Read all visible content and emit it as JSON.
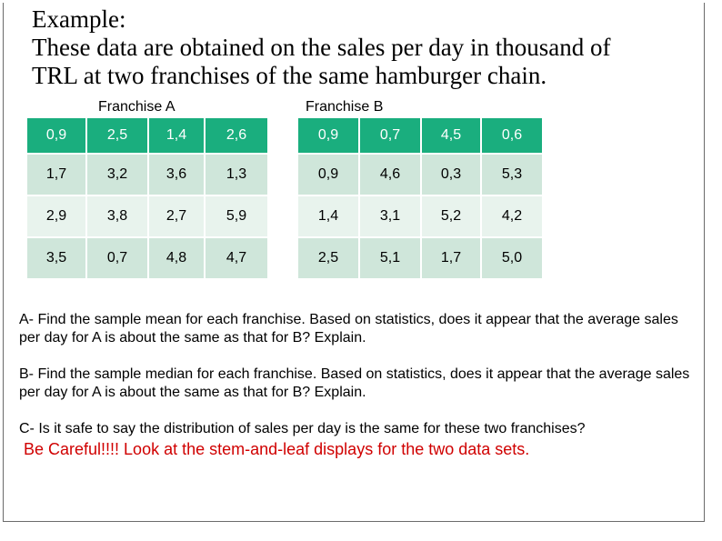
{
  "title": {
    "line1": "Example:",
    "line2": "These data are obtained on the sales per day in thousand of",
    "line3": "TRL at two franchises of the same hamburger chain."
  },
  "franchise_a": {
    "label": "Franchise A",
    "rows": [
      [
        "0,9",
        "2,5",
        "1,4",
        "2,6"
      ],
      [
        "1,7",
        "3,2",
        "3,6",
        "1,3"
      ],
      [
        "2,9",
        "3,8",
        "2,7",
        "5,9"
      ],
      [
        "3,5",
        "0,7",
        "4,8",
        "4,7"
      ]
    ]
  },
  "franchise_b": {
    "label": "Franchise B",
    "rows": [
      [
        "0,9",
        "0,7",
        "4,5",
        "0,6"
      ],
      [
        "0,9",
        "4,6",
        "0,3",
        "5,3"
      ],
      [
        "1,4",
        "3,1",
        "5,2",
        "4,2"
      ],
      [
        "2,5",
        "5,1",
        "1,7",
        "5,0"
      ]
    ]
  },
  "questions": {
    "a": "A- Find the sample mean for each franchise. Based on statistics, does it appear that the average sales per day for A is about the same as that for B?  Explain.",
    "b": "B- Find the sample median for each franchise. Based on statistics, does it appear that the average sales per day for A is about the same as that for B?  Explain.",
    "c": "C- Is it safe to say the distribution of sales per day is the same for these two franchises?",
    "careful": "Be Careful!!!! Look at the stem-and-leaf displays for the two data sets."
  },
  "colors": {
    "header_row": "#1aae7e",
    "row_dark": "#cfe6da",
    "row_light": "#e8f3ed",
    "warning_text": "#d00000"
  }
}
